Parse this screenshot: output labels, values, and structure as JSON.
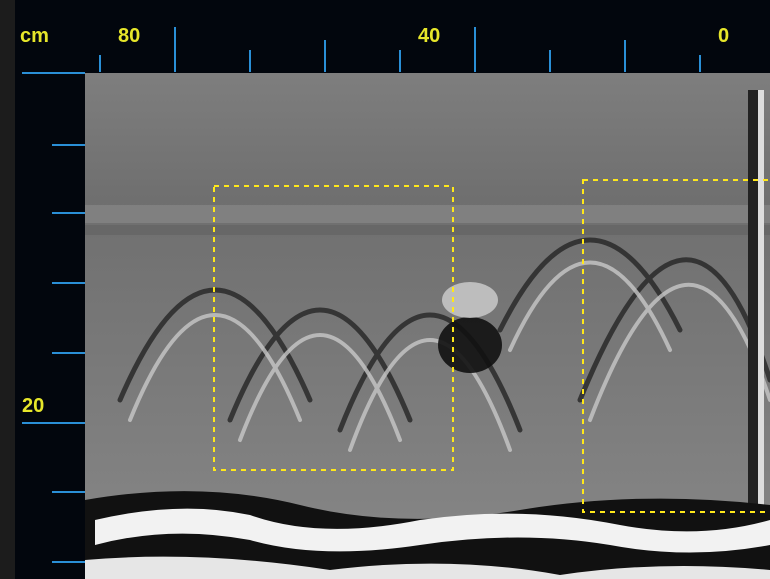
{
  "header": {
    "unit": "cm"
  },
  "top_axis": {
    "labels": [
      "80",
      "40",
      "0"
    ]
  },
  "left_axis": {
    "labels": [
      "20"
    ]
  }
}
